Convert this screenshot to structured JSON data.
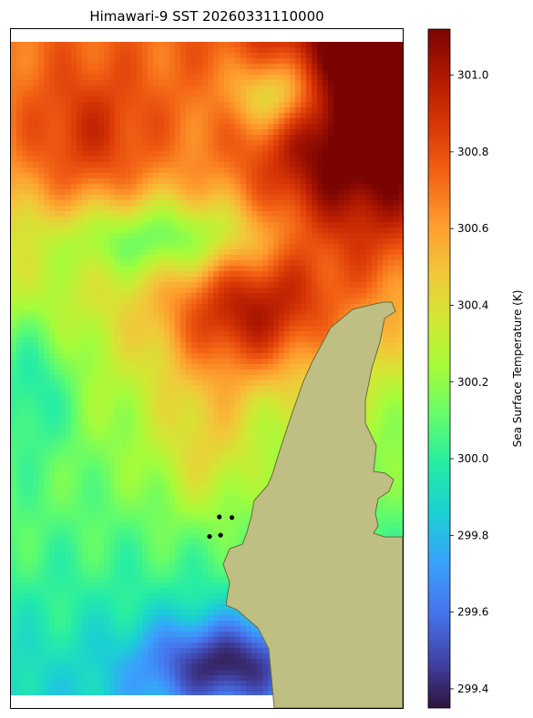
{
  "figure": {
    "title": "Himawari-9 SST 20260331110000"
  },
  "colorbar": {
    "label": "Sea Surface Temperature (K)",
    "colormap": "turbo",
    "vmin": 299.35,
    "vmax": 301.12,
    "ticks": [
      {
        "value": 299.4,
        "label": "299.4"
      },
      {
        "value": 299.6,
        "label": "299.6"
      },
      {
        "value": 299.8,
        "label": "299.8"
      },
      {
        "value": 300.0,
        "label": "300.0"
      },
      {
        "value": 300.2,
        "label": "300.2"
      },
      {
        "value": 300.4,
        "label": "300.4"
      },
      {
        "value": 300.6,
        "label": "300.6"
      },
      {
        "value": 300.8,
        "label": "300.8"
      },
      {
        "value": 301.0,
        "label": "301.0"
      }
    ],
    "stops": [
      "#30123b",
      "#4145ab",
      "#4675ed",
      "#39a2fc",
      "#1bcfd4",
      "#24eca6",
      "#61fc6c",
      "#a4fc3b",
      "#d1e834",
      "#f3c63a",
      "#fe9b2d",
      "#f36315",
      "#d93806",
      "#b11901",
      "#7a0402"
    ]
  },
  "map": {
    "land_color": "#bfbf84",
    "coast_color": "#6b6b3a",
    "markers": [
      {
        "lon": 0.507,
        "lat": 0.243
      },
      {
        "lon": 0.564,
        "lat": 0.272
      },
      {
        "lon": 0.535,
        "lat": 0.245
      },
      {
        "lon": 0.532,
        "lat": 0.273
      }
    ]
  }
}
